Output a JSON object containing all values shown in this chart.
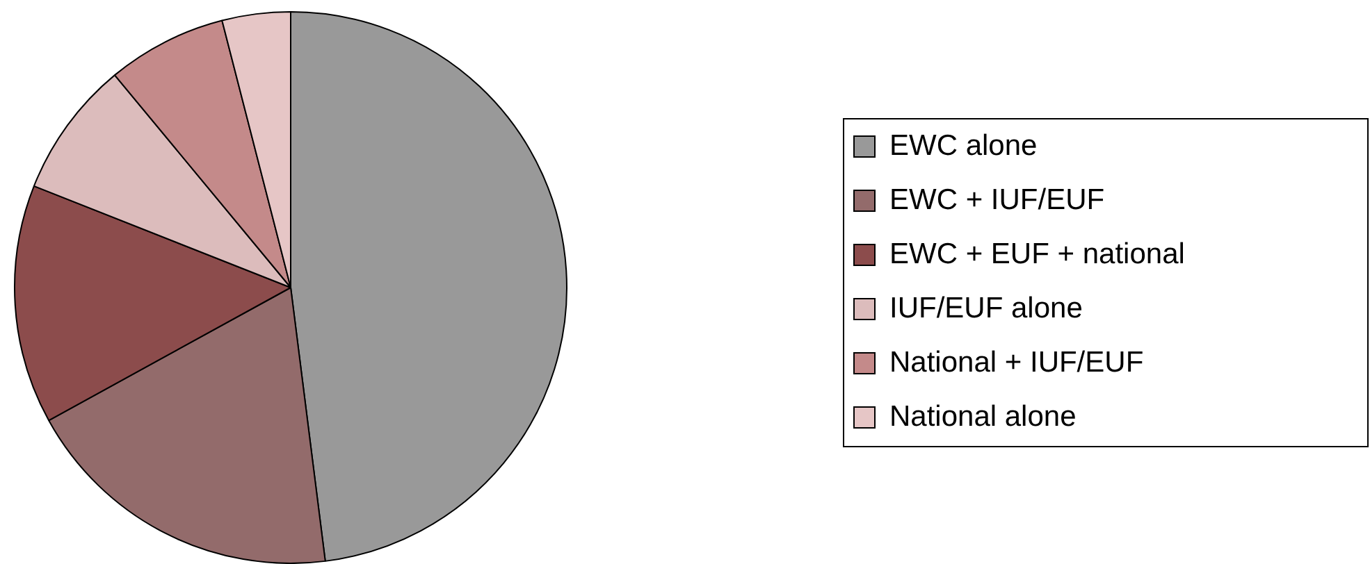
{
  "chart_data": {
    "type": "pie",
    "categories": [
      "EWC alone",
      "EWC + IUF/EUF",
      "EWC + EUF + national",
      "IUF/EUF alone",
      "National + IUF/EUF",
      "National alone"
    ],
    "values": [
      48,
      19,
      14,
      8,
      7,
      4
    ],
    "colors": [
      "#999999",
      "#936b6b",
      "#8c4c4c",
      "#dcbcbc",
      "#c48a8a",
      "#e6c6c6"
    ],
    "legend": "right"
  }
}
